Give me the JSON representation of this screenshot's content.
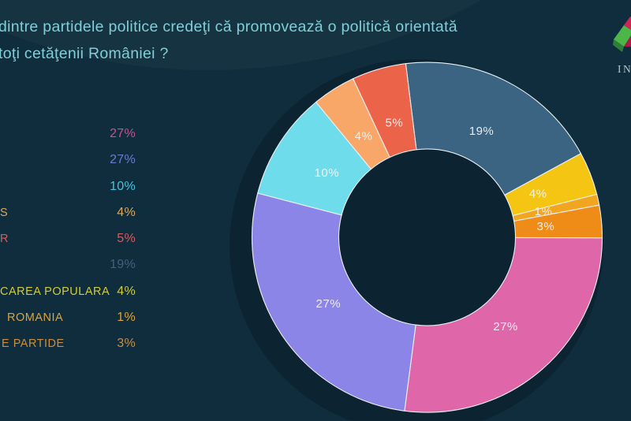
{
  "title": {
    "line1": "dintre partidele politice credeţi că promovează o politică orientată",
    "line2": "toţi cetăţenii României ?"
  },
  "logo": {
    "text": "IN"
  },
  "legend": {
    "items": [
      {
        "label": "",
        "value": "27%",
        "color": "#c4548e"
      },
      {
        "label": "",
        "value": "27%",
        "color": "#6d7cca"
      },
      {
        "label": "",
        "value": "10%",
        "color": "#49c3d8"
      },
      {
        "label": "S",
        "value": "4%",
        "color": "#e0a758"
      },
      {
        "label": "R",
        "value": "5%",
        "color": "#d45d61"
      },
      {
        "label": "",
        "value": "19%",
        "color": "#44607a"
      },
      {
        "label": "CAREA POPULARA",
        "value": "4%",
        "color": "#d2cb3a"
      },
      {
        "label": "ROMANIA",
        "value": "1%",
        "color": "#dba43f"
      },
      {
        "label": "E PARTIDE",
        "value": "3%",
        "color": "#cf8d3e"
      }
    ]
  },
  "chart_data": {
    "type": "pie",
    "subtype": "donut",
    "title": "dintre partidele politice credeţi că promovează o politică orientată toţi cetăţenii României ?",
    "legend_position": "left",
    "start_angle_deg": -7,
    "inner_radius_ratio": 0.505,
    "segments": [
      {
        "label": "19%",
        "value": 19,
        "color": "#3b6382"
      },
      {
        "label": "4%",
        "value": 4,
        "color": "#f5c513"
      },
      {
        "label": "1%",
        "value": 1,
        "color": "#f2a51f"
      },
      {
        "label": "3%",
        "value": 3,
        "color": "#ee8c17"
      },
      {
        "label": "27%",
        "value": 27,
        "color": "#df66a9"
      },
      {
        "label": "27%",
        "value": 27,
        "color": "#8c85e8"
      },
      {
        "label": "10%",
        "value": 10,
        "color": "#6fdceb"
      },
      {
        "label": "4%",
        "value": 4,
        "color": "#f8a768"
      },
      {
        "label": "5%",
        "value": 5,
        "color": "#eb6349"
      }
    ]
  },
  "theme": {
    "background": "#0f2d3c",
    "title_color": "#82cdd7",
    "segment_label_color": "#f1f4f6",
    "segment_divider_color": "#ecf0f3"
  }
}
